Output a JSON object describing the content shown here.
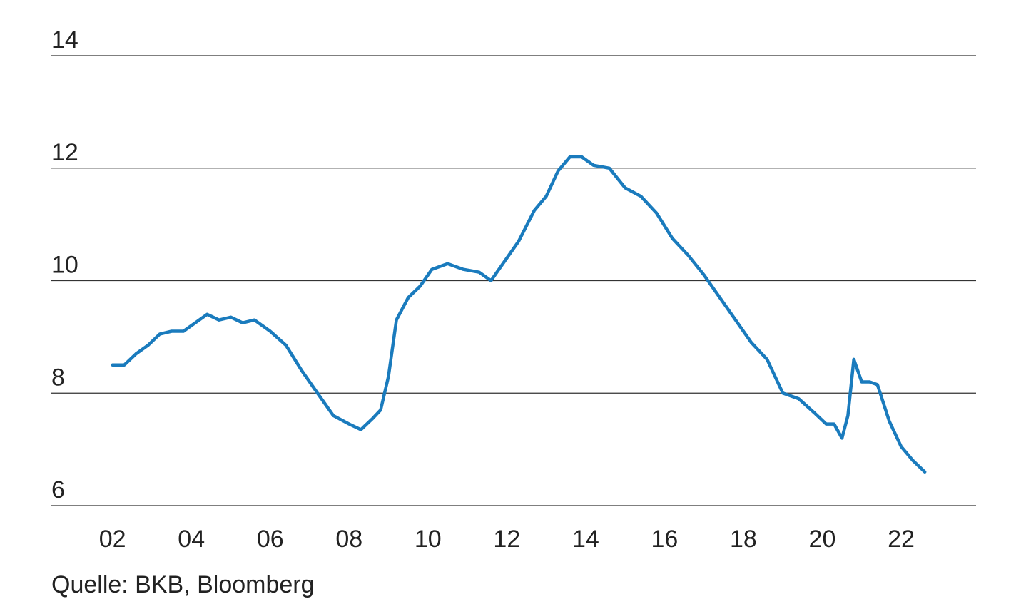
{
  "chart_data": {
    "type": "line",
    "title": "",
    "xlabel": "",
    "ylabel": "",
    "ylim": [
      6,
      14
    ],
    "xlim": [
      2000.45,
      2023.9
    ],
    "y_ticks": [
      "6",
      "8",
      "10",
      "12",
      "14"
    ],
    "x_ticks": [
      "02",
      "04",
      "06",
      "08",
      "10",
      "12",
      "14",
      "16",
      "18",
      "20",
      "22"
    ],
    "grid": "horizontal",
    "legend": "none",
    "line_color": "#1a7bbd",
    "series": [
      {
        "x": [
          2002.0,
          2002.3,
          2002.6,
          2002.9,
          2003.2,
          2003.5,
          2003.8,
          2004.1,
          2004.4,
          2004.7,
          2005.0,
          2005.3,
          2005.6,
          2006.0,
          2006.4,
          2006.8,
          2007.2,
          2007.6,
          2008.0,
          2008.3,
          2008.6,
          2008.8,
          2009.0,
          2009.2,
          2009.5,
          2009.8,
          2010.1,
          2010.5,
          2010.9,
          2011.3,
          2011.6,
          2011.9,
          2012.3,
          2012.7,
          2013.0,
          2013.3,
          2013.6,
          2013.9,
          2014.2,
          2014.6,
          2015.0,
          2015.4,
          2015.8,
          2016.2,
          2016.6,
          2017.0,
          2017.4,
          2017.8,
          2018.2,
          2018.6,
          2019.0,
          2019.4,
          2019.8,
          2020.1,
          2020.3,
          2020.5,
          2020.65,
          2020.8,
          2021.0,
          2021.2,
          2021.4,
          2021.7,
          2022.0,
          2022.3,
          2022.6
        ],
        "y": [
          8.5,
          8.5,
          8.7,
          8.85,
          9.05,
          9.1,
          9.1,
          9.25,
          9.4,
          9.3,
          9.35,
          9.25,
          9.3,
          9.1,
          8.85,
          8.4,
          8.0,
          7.6,
          7.45,
          7.35,
          7.55,
          7.7,
          8.3,
          9.3,
          9.7,
          9.9,
          10.2,
          10.3,
          10.2,
          10.15,
          10.0,
          10.3,
          10.7,
          11.25,
          11.5,
          11.95,
          12.2,
          12.2,
          12.05,
          12.0,
          11.65,
          11.5,
          11.2,
          10.75,
          10.45,
          10.1,
          9.7,
          9.3,
          8.9,
          8.6,
          8.0,
          7.9,
          7.65,
          7.45,
          7.45,
          7.2,
          7.6,
          8.6,
          8.2,
          8.2,
          8.15,
          7.5,
          7.05,
          6.8,
          6.6
        ]
      }
    ],
    "source": "Quelle: BKB, Bloomberg"
  }
}
